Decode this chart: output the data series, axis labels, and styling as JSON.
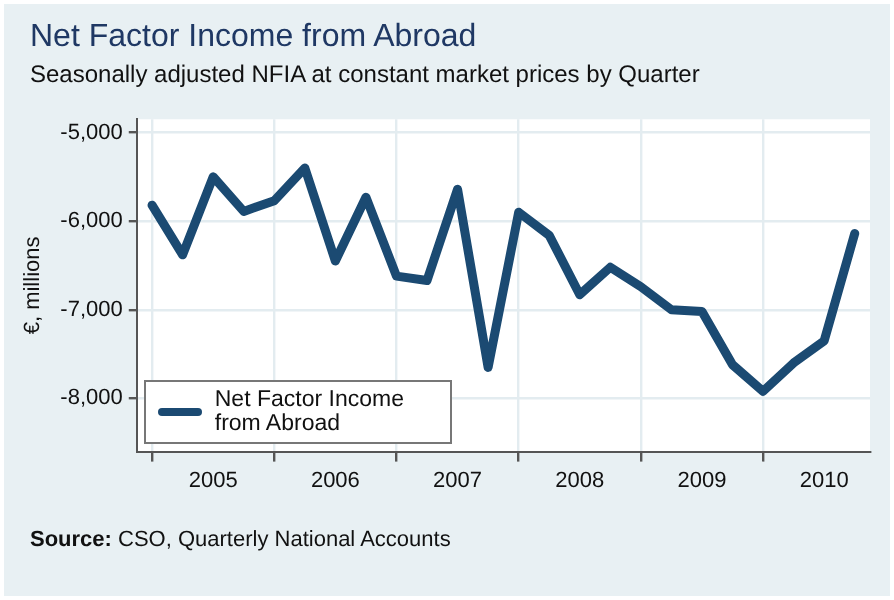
{
  "chart_data": {
    "type": "line",
    "title": "Net Factor Income from Abroad",
    "subtitle": "Seasonally adjusted NFIA at constant market prices by Quarter",
    "ylabel": "€, millions",
    "categories": [
      null,
      null,
      "2005",
      null,
      null,
      null,
      "2006",
      null,
      null,
      null,
      "2007",
      null,
      null,
      null,
      "2008",
      null,
      null,
      null,
      "2009",
      null,
      null,
      null,
      "2010",
      null
    ],
    "series": [
      {
        "name": "Net Factor Income from Abroad",
        "color": "#1b4a72",
        "values": [
          -5820,
          -6380,
          -5500,
          -5890,
          -5770,
          -5400,
          -6450,
          -5730,
          -6620,
          -6670,
          -5640,
          -7650,
          -5900,
          -6160,
          -6830,
          -6520,
          -6740,
          -7000,
          -7020,
          -7620,
          -7920,
          -7600,
          -7350,
          -6140
        ]
      }
    ],
    "ylim": [
      -8600,
      -4850
    ],
    "yticks": [
      {
        "value": -5000,
        "label": "-5,000"
      },
      {
        "value": -6000,
        "label": "-6,000"
      },
      {
        "value": -7000,
        "label": "-7,000"
      },
      {
        "value": -8000,
        "label": "-8,000"
      }
    ],
    "grid": true,
    "legend": "bottom left",
    "marker": "none",
    "line_style": "solid",
    "annotations": [
      "Source: CSO, Quarterly National Accounts"
    ]
  }
}
